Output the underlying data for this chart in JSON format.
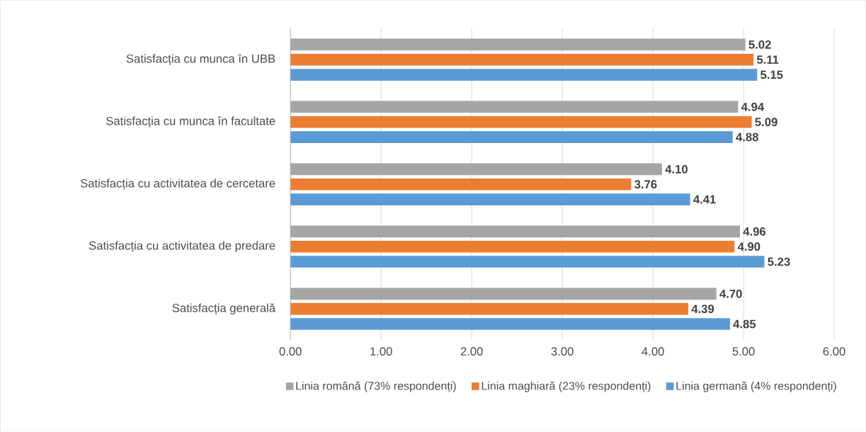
{
  "chart_data": {
    "type": "bar",
    "orientation": "horizontal",
    "categories": [
      "Satisfacția cu munca în UBB",
      "Satisfacția cu munca în facultate",
      "Satisfacția cu activitatea de cercetare",
      "Satisfacția cu activitatea de predare",
      "Satisfacția generală"
    ],
    "series": [
      {
        "name": "Linia română (73% respondenți)",
        "color": "#a5a5a5",
        "values": [
          5.02,
          4.94,
          4.1,
          4.96,
          4.7
        ],
        "value_labels": [
          "5.02",
          "4.94",
          "4.10",
          "4.96",
          "4.70"
        ]
      },
      {
        "name": "Linia maghiară (23% respondenți)",
        "color": "#ed7d31",
        "values": [
          5.11,
          5.09,
          3.76,
          4.9,
          4.39
        ],
        "value_labels": [
          "5.11",
          "5.09",
          "3.76",
          "4.90",
          "4.39"
        ]
      },
      {
        "name": "Linia germană (4% respondenți)",
        "color": "#5b9bd5",
        "values": [
          5.15,
          4.88,
          4.41,
          5.23,
          4.85
        ],
        "value_labels": [
          "5.15",
          "4.88",
          "4.41",
          "5.23",
          "4.85"
        ]
      }
    ],
    "xlim": [
      0,
      6
    ],
    "xticks": [
      {
        "value": 0,
        "label": "0.00"
      },
      {
        "value": 1,
        "label": "1.00"
      },
      {
        "value": 2,
        "label": "2.00"
      },
      {
        "value": 3,
        "label": "3.00"
      },
      {
        "value": 4,
        "label": "4.00"
      },
      {
        "value": 5,
        "label": "5.00"
      },
      {
        "value": 6,
        "label": "6.00"
      }
    ],
    "grid": "x",
    "legend": "bottom"
  }
}
